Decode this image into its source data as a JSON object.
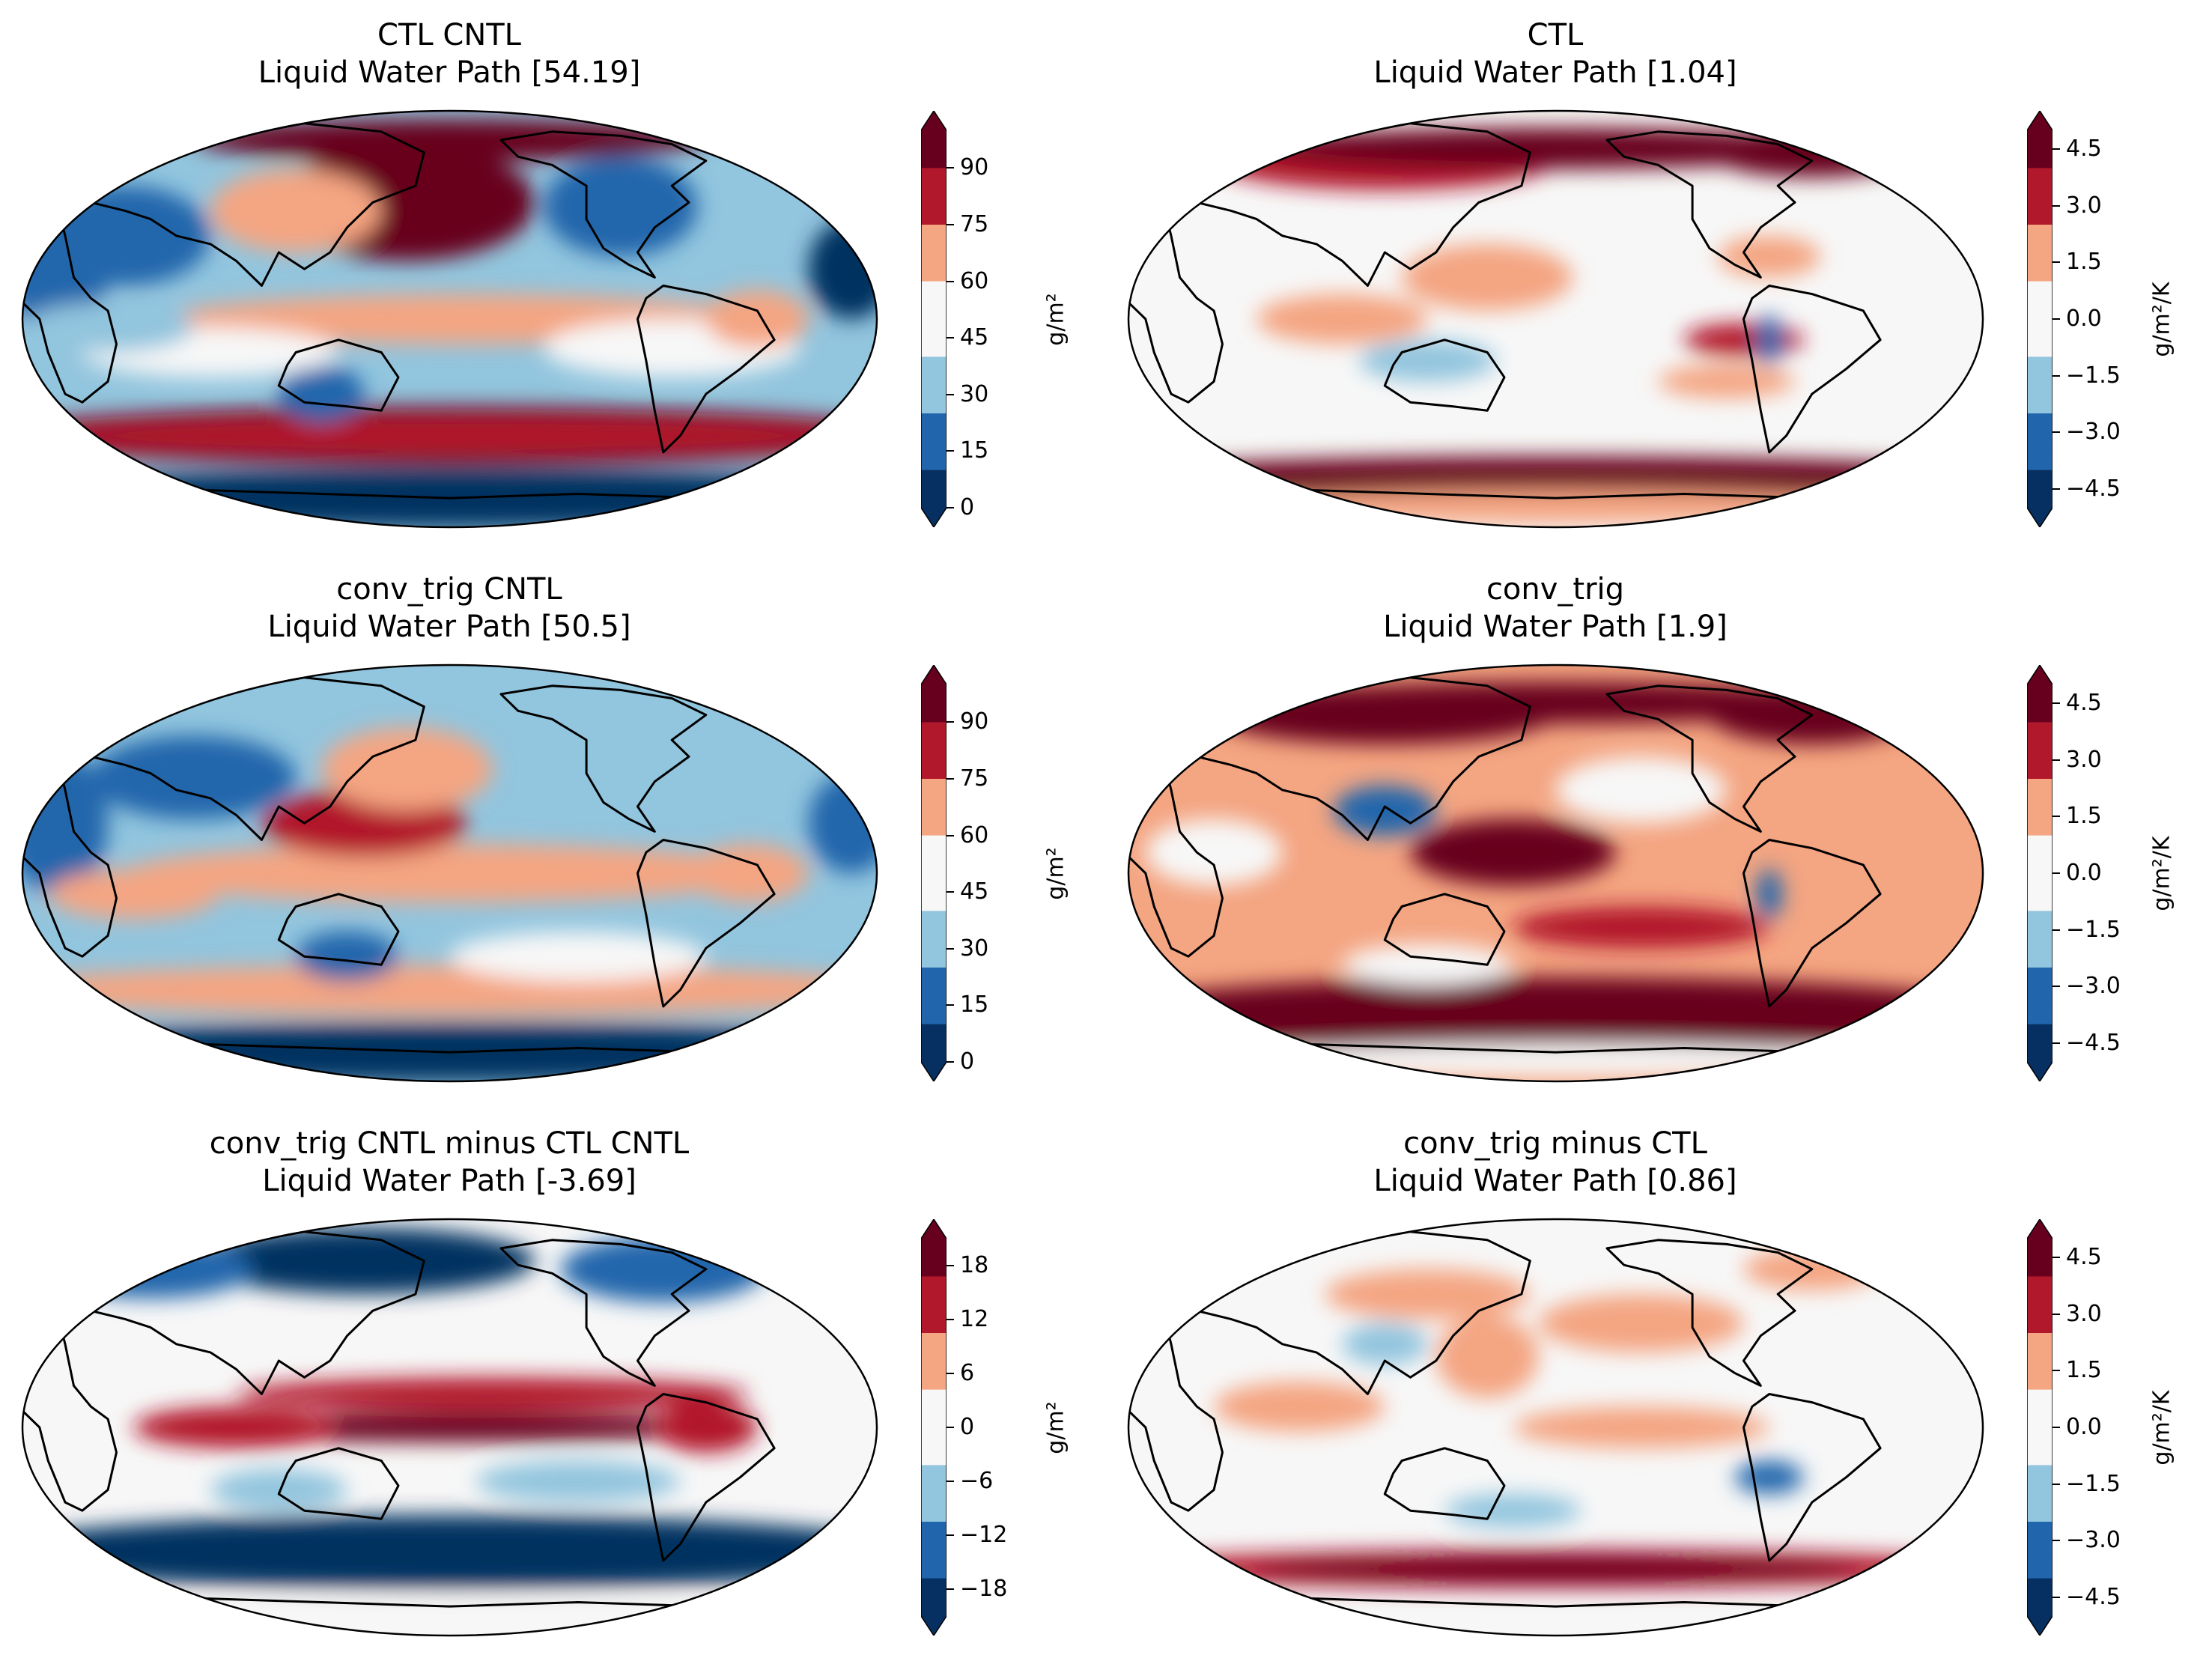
{
  "chart_data": [
    {
      "type": "heatmap",
      "projection": "Robinson (Pacific-centered)",
      "title": "CTL CNTL",
      "subtitle": "Liquid Water Path [54.19]",
      "colormap": "RdBu_r",
      "colorbar_label": "g/m²",
      "ticks": [
        "0",
        "15",
        "30",
        "45",
        "60",
        "75",
        "90"
      ],
      "vmin": 0,
      "vmax": 100,
      "extend": "both"
    },
    {
      "type": "heatmap",
      "projection": "Robinson (Pacific-centered)",
      "title": "CTL",
      "subtitle": "Liquid Water Path [1.04]",
      "colormap": "RdBu_r",
      "colorbar_label": "g/m²/K",
      "ticks": [
        "−4.5",
        "−3.0",
        "−1.5",
        "0.0",
        "1.5",
        "3.0",
        "4.5"
      ],
      "vmin": -5,
      "vmax": 5,
      "extend": "both"
    },
    {
      "type": "heatmap",
      "projection": "Robinson (Pacific-centered)",
      "title": "conv_trig CNTL",
      "subtitle": "Liquid Water Path [50.5]",
      "colormap": "RdBu_r",
      "colorbar_label": "g/m²",
      "ticks": [
        "0",
        "15",
        "30",
        "45",
        "60",
        "75",
        "90"
      ],
      "vmin": 0,
      "vmax": 100,
      "extend": "both"
    },
    {
      "type": "heatmap",
      "projection": "Robinson (Pacific-centered)",
      "title": "conv_trig",
      "subtitle": "Liquid Water Path [1.9]",
      "colormap": "RdBu_r",
      "colorbar_label": "g/m²/K",
      "ticks": [
        "−4.5",
        "−3.0",
        "−1.5",
        "0.0",
        "1.5",
        "3.0",
        "4.5"
      ],
      "vmin": -5,
      "vmax": 5,
      "extend": "both"
    },
    {
      "type": "heatmap",
      "projection": "Robinson (Pacific-centered)",
      "title": "conv_trig CNTL minus CTL CNTL",
      "subtitle": "Liquid Water Path [-3.69]",
      "colormap": "RdBu_r",
      "colorbar_label": "g/m²",
      "ticks": [
        "−18",
        "−12",
        "−6",
        "0",
        "6",
        "12",
        "18"
      ],
      "vmin": -21,
      "vmax": 21,
      "extend": "both"
    },
    {
      "type": "heatmap",
      "projection": "Robinson (Pacific-centered)",
      "title": "conv_trig minus CTL",
      "subtitle": "Liquid Water Path [0.86]",
      "colormap": "RdBu_r",
      "colorbar_label": "g/m²/K",
      "ticks": [
        "−4.5",
        "−3.0",
        "−1.5",
        "0.0",
        "1.5",
        "3.0",
        "4.5"
      ],
      "vmin": -5,
      "vmax": 5,
      "extend": "both"
    }
  ],
  "colors": {
    "dark_red": "#67001f",
    "red": "#b2182b",
    "light_red": "#f4a582",
    "white": "#f7f7f7",
    "light_blue": "#92c5de",
    "blue": "#2166ac",
    "dark_blue": "#053061",
    "coastline": "#000000"
  }
}
